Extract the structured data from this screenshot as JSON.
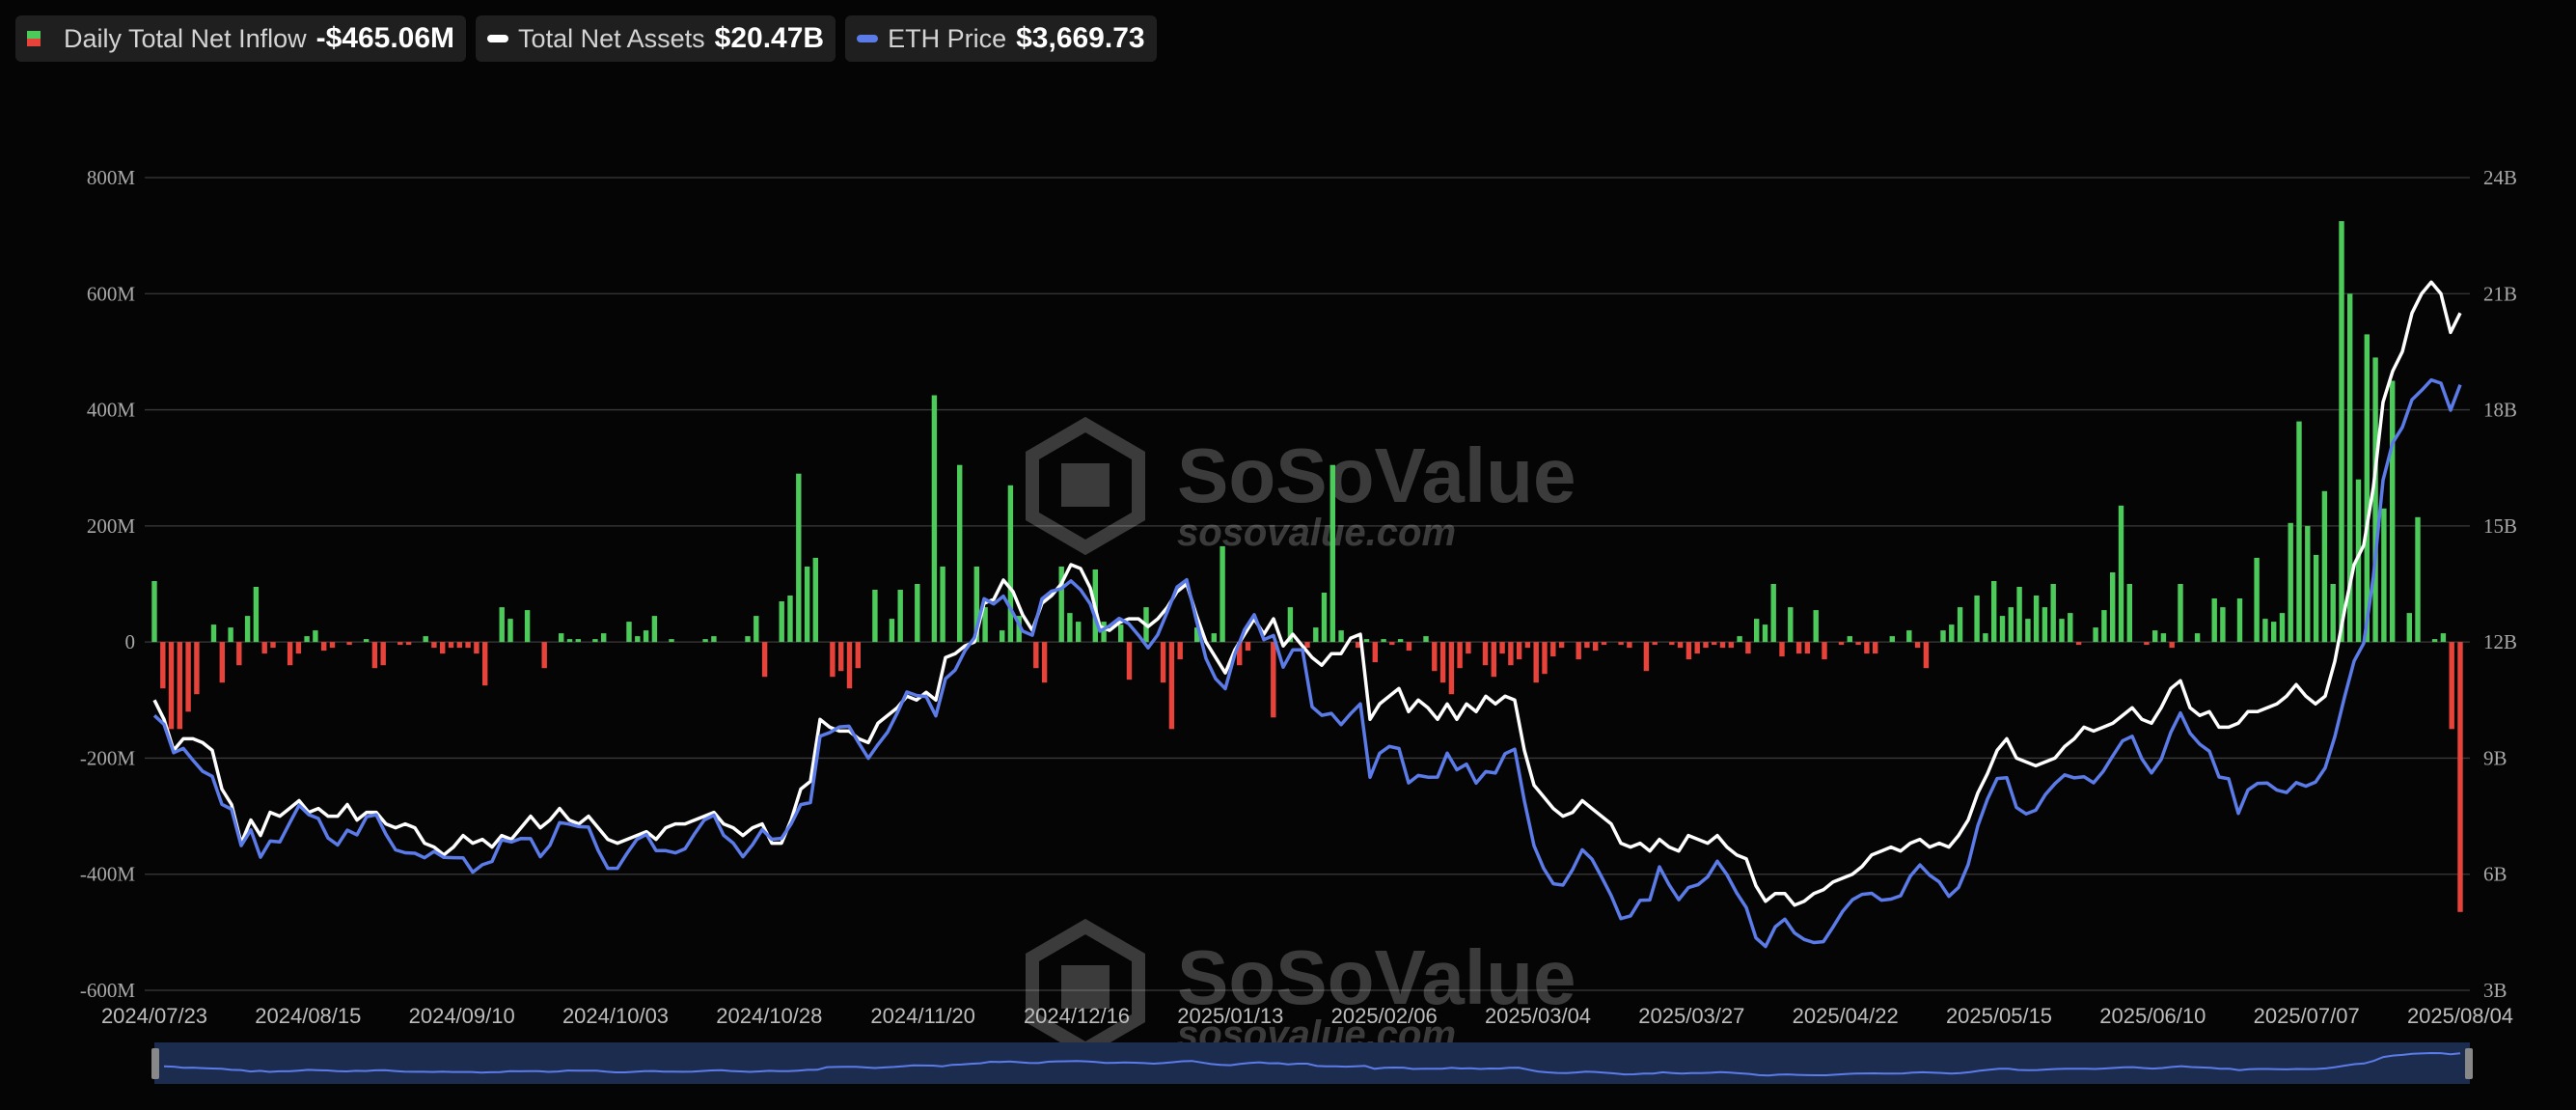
{
  "legend": [
    {
      "label": "Daily Total Net Inflow",
      "value": "-$465.06M",
      "colors": [
        "#22c55e",
        "#ef4444"
      ]
    },
    {
      "label": "Total Net Assets",
      "value": "$20.47B",
      "color": "#ffffff"
    },
    {
      "label": "ETH Price",
      "value": "$3,669.73",
      "color": "#5b7be8"
    }
  ],
  "watermark": {
    "brand": "SoSoValue",
    "url": "sosovalue.com"
  },
  "chart_data": {
    "type": "bar+line",
    "title": "",
    "y_left": {
      "ticks": [
        "800M",
        "600M",
        "400M",
        "200M",
        "0",
        "-200M",
        "-400M",
        "-600M"
      ],
      "range": [
        -600,
        800
      ],
      "unit": "M"
    },
    "y_right": {
      "ticks": [
        "24B",
        "21B",
        "18B",
        "15B",
        "12B",
        "9B",
        "6B",
        "3B"
      ],
      "range": [
        3,
        24
      ],
      "unit": "B"
    },
    "x_ticks": [
      "2024/07/23",
      "2024/08/15",
      "2024/09/10",
      "2024/10/03",
      "2024/10/28",
      "2024/11/20",
      "2024/12/16",
      "2025/01/13",
      "2025/02/06",
      "2025/03/04",
      "2025/03/27",
      "2025/04/22",
      "2025/05/15",
      "2025/06/10",
      "2025/07/07",
      "2025/08/04"
    ],
    "grid": true,
    "colors": {
      "inflow_pos": "#4ccb5a",
      "inflow_neg": "#e8433a",
      "assets": "#ffffff",
      "eth": "#5b7be8"
    },
    "daily_net_inflow_M": [
      105,
      -80,
      -150,
      -150,
      -120,
      -90,
      0,
      30,
      -70,
      25,
      -40,
      45,
      95,
      -20,
      -10,
      0,
      -40,
      -20,
      10,
      20,
      -15,
      -10,
      0,
      -5,
      0,
      5,
      -45,
      -40,
      0,
      -5,
      -5,
      0,
      10,
      -10,
      -20,
      -10,
      -10,
      -10,
      -20,
      -75,
      0,
      60,
      40,
      0,
      55,
      0,
      -45,
      0,
      15,
      5,
      5,
      0,
      5,
      15,
      0,
      0,
      35,
      10,
      20,
      45,
      0,
      5,
      0,
      0,
      0,
      5,
      10,
      0,
      0,
      0,
      10,
      45,
      -60,
      0,
      70,
      80,
      290,
      130,
      145,
      0,
      -60,
      -50,
      -80,
      -45,
      0,
      90,
      0,
      40,
      90,
      0,
      100,
      0,
      425,
      130,
      0,
      305,
      0,
      130,
      60,
      0,
      20,
      270,
      45,
      0,
      -45,
      -70,
      0,
      130,
      50,
      35,
      0,
      125,
      35,
      0,
      30,
      -65,
      0,
      60,
      0,
      -70,
      -150,
      -30,
      0,
      25,
      0,
      15,
      165,
      0,
      -40,
      -15,
      0,
      0,
      -130,
      0,
      60,
      0,
      -10,
      25,
      85,
      305,
      20,
      0,
      -10,
      5,
      -35,
      5,
      -5,
      5,
      -15,
      0,
      10,
      -50,
      -70,
      -90,
      -45,
      -20,
      0,
      -40,
      -60,
      -20,
      -40,
      -30,
      -10,
      -70,
      -55,
      -25,
      -10,
      0,
      -30,
      -10,
      -15,
      -5,
      0,
      -5,
      -10,
      0,
      -50,
      -5,
      0,
      -5,
      -10,
      -30,
      -20,
      -10,
      -5,
      -10,
      -10,
      10,
      -20,
      40,
      30,
      100,
      -25,
      60,
      -20,
      -20,
      55,
      -30,
      0,
      -5,
      10,
      -5,
      -20,
      -20,
      0,
      10,
      0,
      20,
      -10,
      -45,
      0,
      20,
      30,
      60,
      0,
      80,
      15,
      105,
      45,
      60,
      95,
      40,
      80,
      60,
      100,
      40,
      50,
      -5,
      0,
      25,
      55,
      120,
      235,
      100,
      0,
      -5,
      20,
      15,
      -10,
      100,
      0,
      15,
      0,
      75,
      60,
      0,
      75,
      0,
      145,
      40,
      35,
      50,
      205,
      380,
      200,
      150,
      260,
      100,
      725,
      600,
      280,
      530,
      490,
      230,
      450,
      0,
      50,
      215,
      0,
      5,
      15,
      -150,
      -465
    ],
    "total_net_assets_B": [
      10.5,
      10.0,
      9.2,
      9.5,
      9.5,
      9.4,
      9.2,
      8.2,
      7.8,
      6.8,
      7.4,
      7.0,
      7.6,
      7.5,
      7.7,
      7.9,
      7.6,
      7.7,
      7.5,
      7.5,
      7.8,
      7.4,
      7.6,
      7.6,
      7.3,
      7.2,
      7.3,
      7.2,
      6.8,
      6.7,
      6.5,
      6.7,
      7.0,
      6.8,
      6.9,
      6.7,
      7.0,
      6.9,
      7.2,
      7.5,
      7.2,
      7.4,
      7.7,
      7.4,
      7.3,
      7.5,
      7.2,
      6.9,
      6.8,
      6.9,
      7.0,
      7.1,
      6.9,
      7.2,
      7.3,
      7.3,
      7.4,
      7.5,
      7.6,
      7.3,
      7.2,
      7.0,
      7.2,
      7.3,
      6.8,
      6.8,
      7.4,
      8.2,
      8.4,
      10.0,
      9.8,
      9.7,
      9.7,
      9.5,
      9.4,
      9.9,
      10.1,
      10.3,
      10.6,
      10.5,
      10.7,
      10.5,
      11.6,
      11.7,
      11.9,
      12.0,
      13.0,
      13.1,
      13.6,
      13.3,
      12.7,
      12.3,
      13.0,
      13.2,
      13.5,
      14.0,
      13.9,
      13.4,
      12.4,
      12.3,
      12.5,
      12.6,
      12.6,
      12.4,
      12.6,
      12.9,
      13.3,
      13.5,
      12.7,
      12.0,
      11.6,
      11.2,
      11.8,
      12.2,
      12.6,
      12.2,
      12.6,
      11.9,
      12.2,
      11.9,
      11.6,
      11.4,
      11.7,
      11.7,
      12.1,
      12.2,
      10.0,
      10.4,
      10.6,
      10.8,
      10.2,
      10.5,
      10.3,
      10.0,
      10.4,
      10.0,
      10.4,
      10.2,
      10.6,
      10.4,
      10.6,
      10.5,
      9.2,
      8.3,
      8.0,
      7.7,
      7.5,
      7.6,
      7.9,
      7.7,
      7.5,
      7.3,
      6.8,
      6.7,
      6.8,
      6.6,
      6.9,
      6.7,
      6.6,
      7.0,
      6.9,
      6.8,
      7.0,
      6.7,
      6.5,
      6.4,
      5.7,
      5.3,
      5.5,
      5.5,
      5.2,
      5.3,
      5.5,
      5.6,
      5.8,
      5.9,
      6.0,
      6.2,
      6.5,
      6.6,
      6.7,
      6.6,
      6.8,
      6.9,
      6.7,
      6.8,
      6.7,
      7.0,
      7.4,
      8.1,
      8.6,
      9.2,
      9.5,
      9.0,
      8.9,
      8.8,
      8.9,
      9.0,
      9.3,
      9.5,
      9.8,
      9.7,
      9.8,
      9.9,
      10.1,
      10.3,
      10.0,
      9.9,
      10.3,
      10.8,
      11.0,
      10.3,
      10.1,
      10.2,
      9.8,
      9.8,
      9.9,
      10.2,
      10.2,
      10.3,
      10.4,
      10.6,
      10.9,
      10.6,
      10.4,
      10.6,
      11.5,
      12.8,
      14.0,
      14.5,
      16.0,
      18.2,
      19.0,
      19.5,
      20.5,
      21.0,
      21.3,
      21.0,
      20.0,
      20.5
    ]
  }
}
